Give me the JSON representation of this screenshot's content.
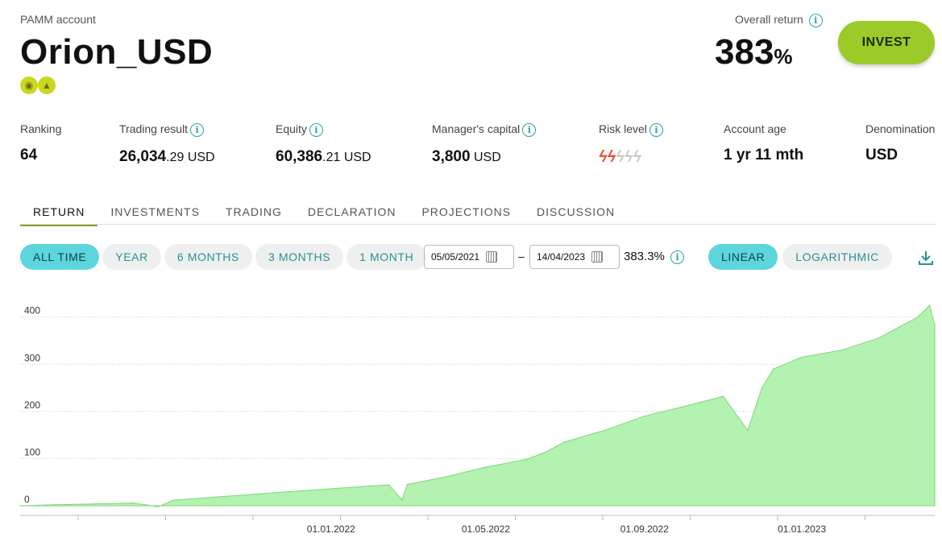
{
  "header": {
    "account_type": "PAMM account",
    "name": "Orion_USD",
    "badges": [
      "chat-icon",
      "thumbs-up-icon"
    ],
    "overall_return_label": "Overall return",
    "overall_return_value": "383",
    "overall_return_unit": "%",
    "invest_label": "INVEST"
  },
  "stats": [
    {
      "label": "Ranking",
      "value": "64",
      "decimals": "",
      "unit": "",
      "info": false
    },
    {
      "label": "Trading result",
      "value": "26,034",
      "decimals": ".29",
      "unit": "USD",
      "info": true
    },
    {
      "label": "Equity",
      "value": "60,386",
      "decimals": ".21",
      "unit": "USD",
      "info": true
    },
    {
      "label": "Manager's capital",
      "value": "3,800",
      "decimals": "",
      "unit": "USD",
      "info": true
    },
    {
      "label": "Risk level",
      "value": "",
      "decimals": "",
      "unit": "",
      "info": true,
      "risk_level": 2,
      "risk_max": 5
    },
    {
      "label": "Account age",
      "value": "1 yr 11 mth",
      "decimals": "",
      "unit": "",
      "info": false
    },
    {
      "label": "Denomination",
      "value": "USD",
      "decimals": "",
      "unit": "",
      "info": false
    }
  ],
  "tabs": [
    "RETURN",
    "INVESTMENTS",
    "TRADING",
    "DECLARATION",
    "PROJECTIONS",
    "DISCUSSION"
  ],
  "active_tab": "RETURN",
  "periods": [
    "ALL TIME",
    "YEAR",
    "6 MONTHS",
    "3 MONTHS",
    "1 MONTH"
  ],
  "active_period": "ALL TIME",
  "date_from": "05/05/2021",
  "date_to": "14/04/2023",
  "date_separator": "–",
  "period_return": "383.3%",
  "scales": [
    "LINEAR",
    "LOGARITHMIC"
  ],
  "active_scale": "LINEAR",
  "colors": {
    "accent": "#5dd5dc",
    "invest": "#9acb28",
    "area": "#b3f2b0",
    "line": "#7fd67b",
    "risk": "#e0583a"
  },
  "chart_data": {
    "type": "area",
    "title": "",
    "xlabel": "",
    "ylabel": "",
    "ylim": [
      0,
      420
    ],
    "y_ticks": [
      0,
      100,
      200,
      300,
      400
    ],
    "x_tick_labels": [
      "01.01.2022",
      "01.05.2022",
      "01.09.2022",
      "01.01.2023"
    ],
    "grid": true,
    "x": [
      "2021-05-05",
      "2021-06-01",
      "2021-07-01",
      "2021-08-01",
      "2021-08-20",
      "2021-09-01",
      "2021-10-01",
      "2021-11-01",
      "2021-12-01",
      "2022-01-01",
      "2022-02-01",
      "2022-02-15",
      "2022-02-25",
      "2022-03-01",
      "2022-04-01",
      "2022-05-01",
      "2022-06-01",
      "2022-06-15",
      "2022-07-01",
      "2022-08-01",
      "2022-09-01",
      "2022-10-01",
      "2022-11-01",
      "2022-11-20",
      "2022-12-01",
      "2022-12-10",
      "2023-01-01",
      "2023-02-01",
      "2023-03-01",
      "2023-04-01",
      "2023-04-10",
      "2023-04-14"
    ],
    "series": [
      {
        "values": [
          0,
          2,
          4,
          6,
          -2,
          12,
          18,
          24,
          30,
          36,
          42,
          44,
          12,
          45,
          62,
          82,
          98,
          112,
          135,
          160,
          190,
          210,
          232,
          160,
          250,
          290,
          315,
          330,
          355,
          400,
          425,
          383
        ]
      }
    ]
  }
}
